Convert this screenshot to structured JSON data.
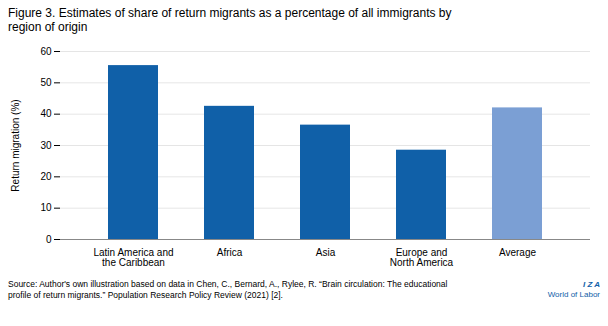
{
  "chart_data": {
    "type": "bar",
    "title": "Figure 3. Estimates of share of return migrants as a percentage of all immigrants by\nregion of origin",
    "categories": [
      "Latin America and\nthe Caribbean",
      "Africa",
      "Asia",
      "Europe and\nNorth America",
      "Average"
    ],
    "values": [
      55.5,
      42.5,
      36.5,
      28.5,
      42.0
    ],
    "colors": [
      "#1060a8",
      "#1060a8",
      "#1060a8",
      "#1060a8",
      "#7b9fd4"
    ],
    "ylabel": "Return migration (%)",
    "ylim": [
      0,
      60
    ],
    "yticks": [
      0,
      10,
      20,
      30,
      40,
      50,
      60
    ],
    "grid": true,
    "source": "Source: Author's own illustration based on data in Chen, C., Bernard, A., Rylee, R. “Brain circulation: The educational\nprofile of return migrants.” Population Research Policy Review (2021) [2].",
    "annotations": [
      "I  Z  A",
      "World of Labor"
    ],
    "annotation_color": "#1060a8"
  }
}
